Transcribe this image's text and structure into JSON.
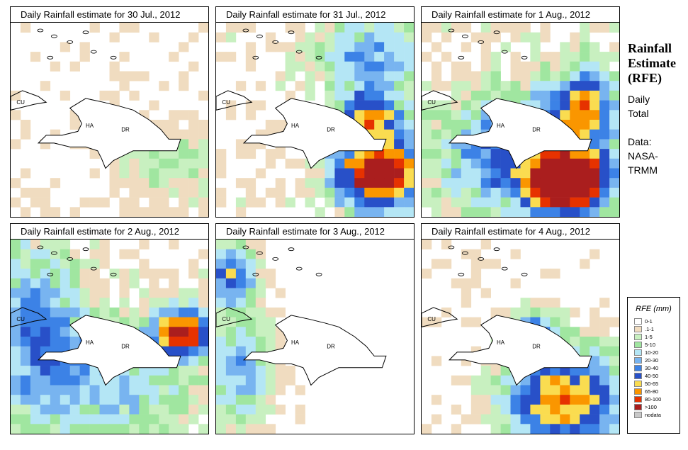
{
  "panels": [
    {
      "title": "Daily Rainfall estimate for  30 Jul., 2012",
      "seed": 11,
      "pattern": "sparse"
    },
    {
      "title": "Daily Rainfall estimate for  31 Jul., 2012",
      "seed": 23,
      "pattern": "east_storm"
    },
    {
      "title": "Daily Rainfall estimate for  1 Aug., 2012",
      "seed": 37,
      "pattern": "southeast_core"
    },
    {
      "title": "Daily Rainfall estimate for  2 Aug., 2012",
      "seed": 41,
      "pattern": "west_spread"
    },
    {
      "title": "Daily Rainfall estimate for  3 Aug., 2012",
      "seed": 53,
      "pattern": "west_edge"
    },
    {
      "title": "Daily Rainfall estimate for  4 Aug., 2012",
      "seed": 67,
      "pattern": "south_band"
    }
  ],
  "map_labels": {
    "cu": "CU",
    "ha": "HA",
    "dr": "DR"
  },
  "side": {
    "title_line1": "Rainfall",
    "title_line2": "Estimate",
    "title_line3": "(RFE)",
    "daily": "Daily",
    "total": "Total",
    "data_label": "Data:",
    "source1": "NASA-",
    "source2": "TRMM"
  },
  "legend": {
    "title": "RFE (mm)",
    "items": [
      {
        "label": "0-1",
        "color": "#ffffff"
      },
      {
        "label": ".1-1",
        "color": "#f0dcc0"
      },
      {
        "label": "1-5",
        "color": "#c8f0c0"
      },
      {
        "label": "5-10",
        "color": "#a0e6a0"
      },
      {
        "label": "10-20",
        "color": "#b4e6f5"
      },
      {
        "label": "20-30",
        "color": "#78b4f0"
      },
      {
        "label": "30-40",
        "color": "#3c82e6"
      },
      {
        "label": "40-50",
        "color": "#2850c8"
      },
      {
        "label": "50-65",
        "color": "#fadc50"
      },
      {
        "label": "65-80",
        "color": "#fa9600"
      },
      {
        "label": "80-100",
        "color": "#e63200"
      },
      {
        "label": ">100",
        "color": "#aa1e1e"
      },
      {
        "label": "nodata",
        "color": "#c8c8c8"
      }
    ]
  }
}
